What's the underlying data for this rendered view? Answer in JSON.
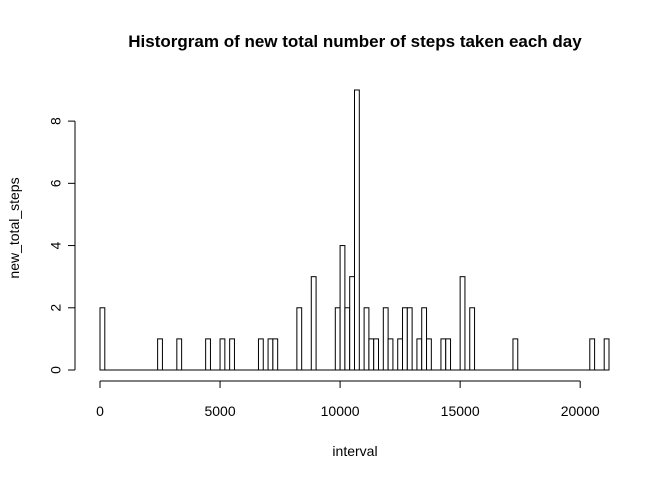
{
  "chart_data": {
    "type": "bar",
    "subtype": "histogram",
    "title": "Historgram of new total number of steps taken each day",
    "xlabel": "interval",
    "ylabel": "new_total_steps",
    "xlim": [
      0,
      21200
    ],
    "ylim": [
      0,
      9
    ],
    "bin_width": 200,
    "x_ticks": [
      0,
      5000,
      10000,
      15000,
      20000
    ],
    "y_ticks": [
      0,
      2,
      4,
      6,
      8
    ],
    "grid": false,
    "legend": "none",
    "bar_fill": "#ffffff",
    "bar_stroke": "#000000",
    "bins": [
      {
        "start": 0,
        "count": 2
      },
      {
        "start": 2400,
        "count": 1
      },
      {
        "start": 3200,
        "count": 1
      },
      {
        "start": 4400,
        "count": 1
      },
      {
        "start": 5000,
        "count": 1
      },
      {
        "start": 5400,
        "count": 1
      },
      {
        "start": 6600,
        "count": 1
      },
      {
        "start": 7000,
        "count": 1
      },
      {
        "start": 7200,
        "count": 1
      },
      {
        "start": 8200,
        "count": 2
      },
      {
        "start": 8800,
        "count": 3
      },
      {
        "start": 9800,
        "count": 2
      },
      {
        "start": 10000,
        "count": 4
      },
      {
        "start": 10200,
        "count": 2
      },
      {
        "start": 10400,
        "count": 3
      },
      {
        "start": 10600,
        "count": 9
      },
      {
        "start": 11000,
        "count": 2
      },
      {
        "start": 11200,
        "count": 1
      },
      {
        "start": 11400,
        "count": 1
      },
      {
        "start": 11800,
        "count": 2
      },
      {
        "start": 12000,
        "count": 1
      },
      {
        "start": 12400,
        "count": 1
      },
      {
        "start": 12600,
        "count": 2
      },
      {
        "start": 12800,
        "count": 2
      },
      {
        "start": 13200,
        "count": 1
      },
      {
        "start": 13400,
        "count": 2
      },
      {
        "start": 13600,
        "count": 1
      },
      {
        "start": 14200,
        "count": 1
      },
      {
        "start": 14400,
        "count": 1
      },
      {
        "start": 15000,
        "count": 3
      },
      {
        "start": 15400,
        "count": 2
      },
      {
        "start": 17200,
        "count": 1
      },
      {
        "start": 20400,
        "count": 1
      },
      {
        "start": 21000,
        "count": 1
      }
    ]
  }
}
